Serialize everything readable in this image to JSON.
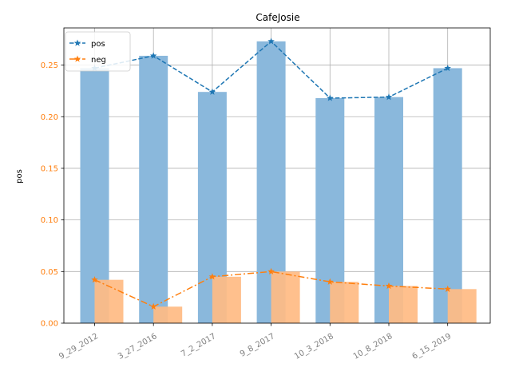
{
  "chart_data": {
    "type": "bar",
    "title": "CafeJosie",
    "xlabel": "",
    "ylabel": "pos",
    "categories": [
      "9_29_2012",
      "3_27_2016",
      "7_2_2017",
      "9_8_2017",
      "10_3_2018",
      "10_8_2018",
      "6_15_2019"
    ],
    "ylim": [
      0.0,
      0.286
    ],
    "yticks": [
      "0.00",
      "0.05",
      "0.10",
      "0.15",
      "0.20",
      "0.25"
    ],
    "grid": true,
    "legend_position": "top-left",
    "series": [
      {
        "name": "pos",
        "values": [
          0.247,
          0.259,
          0.224,
          0.273,
          0.218,
          0.219,
          0.247
        ],
        "bar_color": "#8ab8dc",
        "line_color": "#1f77b4",
        "line_style": "dashed",
        "marker": "star"
      },
      {
        "name": "neg",
        "values": [
          0.042,
          0.016,
          0.045,
          0.05,
          0.04,
          0.036,
          0.033
        ],
        "bar_color": "#ffbb83",
        "line_color": "#ff7f0e",
        "line_style": "dash-dot",
        "marker": "star"
      }
    ],
    "colors": {
      "grid": "#b0b0b0",
      "ytick_text": "#ff7f0e",
      "xtick_text": "#808080"
    }
  }
}
